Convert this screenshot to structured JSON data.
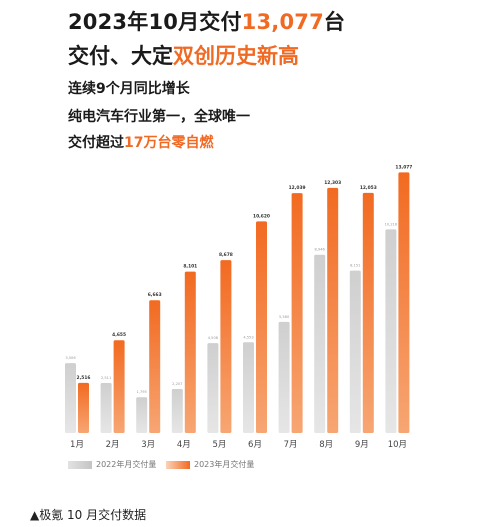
{
  "headline": {
    "line1_prefix": "2023年10月交付",
    "line1_highlight": "13,077",
    "line1_suffix": "台",
    "line2_prefix": "交付、大定",
    "line2_highlight": "双创历史新高"
  },
  "bullets": {
    "b1": "连续9个月同比增长",
    "b2": "纯电汽车行业第一，全球唯一",
    "b3_prefix": "交付超过",
    "b3_highlight": "17万台零自燃"
  },
  "colors": {
    "accent": "#f06a24",
    "bar_2023": "#f26a21",
    "bar_2022": "#cfcfcf"
  },
  "chart_data": {
    "type": "bar",
    "categories": [
      "1月",
      "2月",
      "3月",
      "4月",
      "5月",
      "6月",
      "7月",
      "8月",
      "9月",
      "10月"
    ],
    "series": [
      {
        "name": "2022年月交付量",
        "values": [
          3506,
          2511,
          1795,
          2207,
          4508,
          4553,
          5580,
          8946,
          8151,
          10216
        ],
        "labels": [
          "3,506",
          "2,511",
          "1,795",
          "2,207",
          "4,508",
          "4,553",
          "5,580",
          "8,946",
          "8,151",
          "10,216"
        ]
      },
      {
        "name": "2023年月交付量",
        "values": [
          2516,
          4655,
          6663,
          8101,
          8678,
          10620,
          12039,
          12303,
          12053,
          13077
        ],
        "labels": [
          "2,516",
          "4,655",
          "6,663",
          "8,101",
          "8,678",
          "10,620",
          "12,039",
          "12,303",
          "12,053",
          "13,077"
        ]
      }
    ],
    "ylim": [
      0,
      13500
    ],
    "grid": false,
    "legend_position": "bottom-left"
  },
  "caption": "▲极氪 10 月交付数据"
}
